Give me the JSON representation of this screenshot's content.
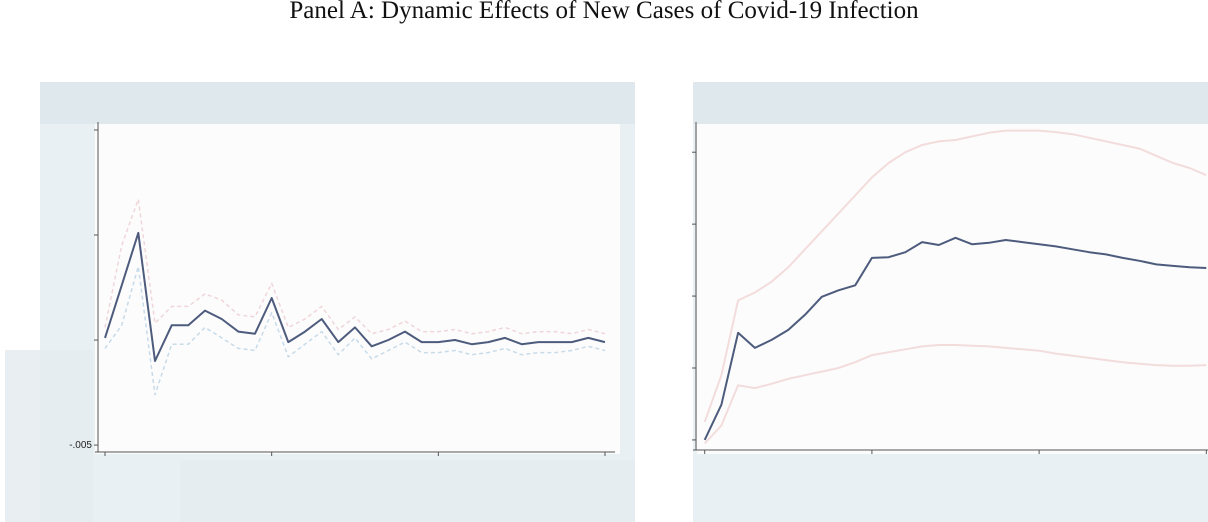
{
  "header": {
    "title": "Panel A: Dynamic Effects of New Cases of Covid-19 Infection"
  },
  "chart_data": [
    {
      "type": "line",
      "x": [
        0,
        1,
        2,
        3,
        4,
        5,
        6,
        7,
        8,
        9,
        10,
        11,
        12,
        13,
        14,
        15,
        16,
        17,
        18,
        19,
        20,
        21,
        22,
        23,
        24,
        25,
        26,
        27,
        28,
        29,
        30
      ],
      "xlim": [
        -0.6,
        30.6
      ],
      "xticks": [
        0,
        10,
        20,
        30
      ],
      "ylim": [
        -0.00533,
        0.01038
      ],
      "yticks": [
        {
          "value": -0.005,
          "label": "-.005"
        },
        0,
        0.005,
        0.01
      ],
      "series": [
        {
          "color": "#f0d6d9",
          "dashed": true,
          "values": [
            0.0006,
            0.0045,
            0.0067,
            0.0008,
            0.0016,
            0.0016,
            0.0022,
            0.0019,
            0.0012,
            0.0011,
            0.0027,
            0.0006,
            0.001,
            0.0016,
            0.0005,
            0.0011,
            0.0003,
            0.0005,
            0.0009,
            0.0004,
            0.0004,
            0.0005,
            0.0003,
            0.0004,
            0.0006,
            0.0003,
            0.0004,
            0.0004,
            0.0003,
            0.0005,
            0.0003
          ]
        },
        {
          "color": "#c8dbe8",
          "dashed": true,
          "values": [
            -0.0004,
            0.0007,
            0.0035,
            -0.0026,
            -0.0002,
            -0.0002,
            0.0006,
            0.0001,
            -0.0004,
            -0.0005,
            0.0013,
            -0.0008,
            -0.0002,
            0.0004,
            -0.0007,
            0.0001,
            -0.0009,
            -0.0005,
            -0.0001,
            -0.0006,
            -0.0006,
            -0.0005,
            -0.0007,
            -0.0006,
            -0.0004,
            -0.0007,
            -0.0006,
            -0.0006,
            -0.0005,
            -0.0003,
            -0.0005
          ]
        },
        {
          "color": "#4d5b7c",
          "dashed": false,
          "values": [
            0.0001,
            0.0026,
            0.0051,
            -0.001,
            0.0007,
            0.0007,
            0.0014,
            0.001,
            0.0004,
            0.0003,
            0.002,
            -0.0001,
            0.0004,
            0.001,
            -0.0001,
            0.0006,
            -0.0003,
            0,
            0.0004,
            -0.0001,
            -0.0001,
            0,
            -0.0002,
            -0.0001,
            0.0001,
            -0.0002,
            -0.0001,
            -0.0001,
            -0.0001,
            0.0001,
            -0.0001
          ]
        }
      ]
    },
    {
      "type": "line",
      "x": [
        0,
        1,
        2,
        3,
        4,
        5,
        6,
        7,
        8,
        9,
        10,
        11,
        12,
        13,
        14,
        15,
        16,
        17,
        18,
        19,
        20,
        21,
        22,
        23,
        24,
        25,
        26,
        27,
        28,
        29,
        30
      ],
      "xlim": [
        -0.7,
        30.1
      ],
      "xticks": [
        0,
        10,
        20,
        30
      ],
      "ylim": [
        -0.14,
        4.42
      ],
      "yticks": [
        0,
        1,
        2,
        3,
        4
      ],
      "series": [
        {
          "color": "#f3dcdc",
          "dashed": false,
          "values": [
            0.25,
            0.9,
            1.94,
            2.05,
            2.2,
            2.4,
            2.65,
            2.9,
            3.15,
            3.4,
            3.65,
            3.85,
            4.0,
            4.1,
            4.15,
            4.17,
            4.22,
            4.27,
            4.3,
            4.3,
            4.3,
            4.28,
            4.25,
            4.2,
            4.15,
            4.1,
            4.05,
            3.95,
            3.85,
            3.78,
            3.68
          ]
        },
        {
          "color": "#f3dcdc",
          "dashed": false,
          "values": [
            -0.05,
            0.2,
            0.76,
            0.72,
            0.78,
            0.85,
            0.9,
            0.95,
            1.0,
            1.08,
            1.18,
            1.22,
            1.26,
            1.3,
            1.32,
            1.32,
            1.31,
            1.3,
            1.28,
            1.26,
            1.24,
            1.2,
            1.17,
            1.14,
            1.11,
            1.08,
            1.06,
            1.04,
            1.03,
            1.03,
            1.04
          ]
        },
        {
          "color": "#4d5b7c",
          "dashed": false,
          "values": [
            0,
            0.49,
            1.49,
            1.28,
            1.39,
            1.53,
            1.74,
            1.99,
            2.08,
            2.15,
            2.53,
            2.54,
            2.61,
            2.75,
            2.71,
            2.81,
            2.72,
            2.74,
            2.78,
            2.75,
            2.72,
            2.69,
            2.65,
            2.61,
            2.58,
            2.53,
            2.49,
            2.44,
            2.42,
            2.4,
            2.39
          ]
        }
      ]
    }
  ]
}
